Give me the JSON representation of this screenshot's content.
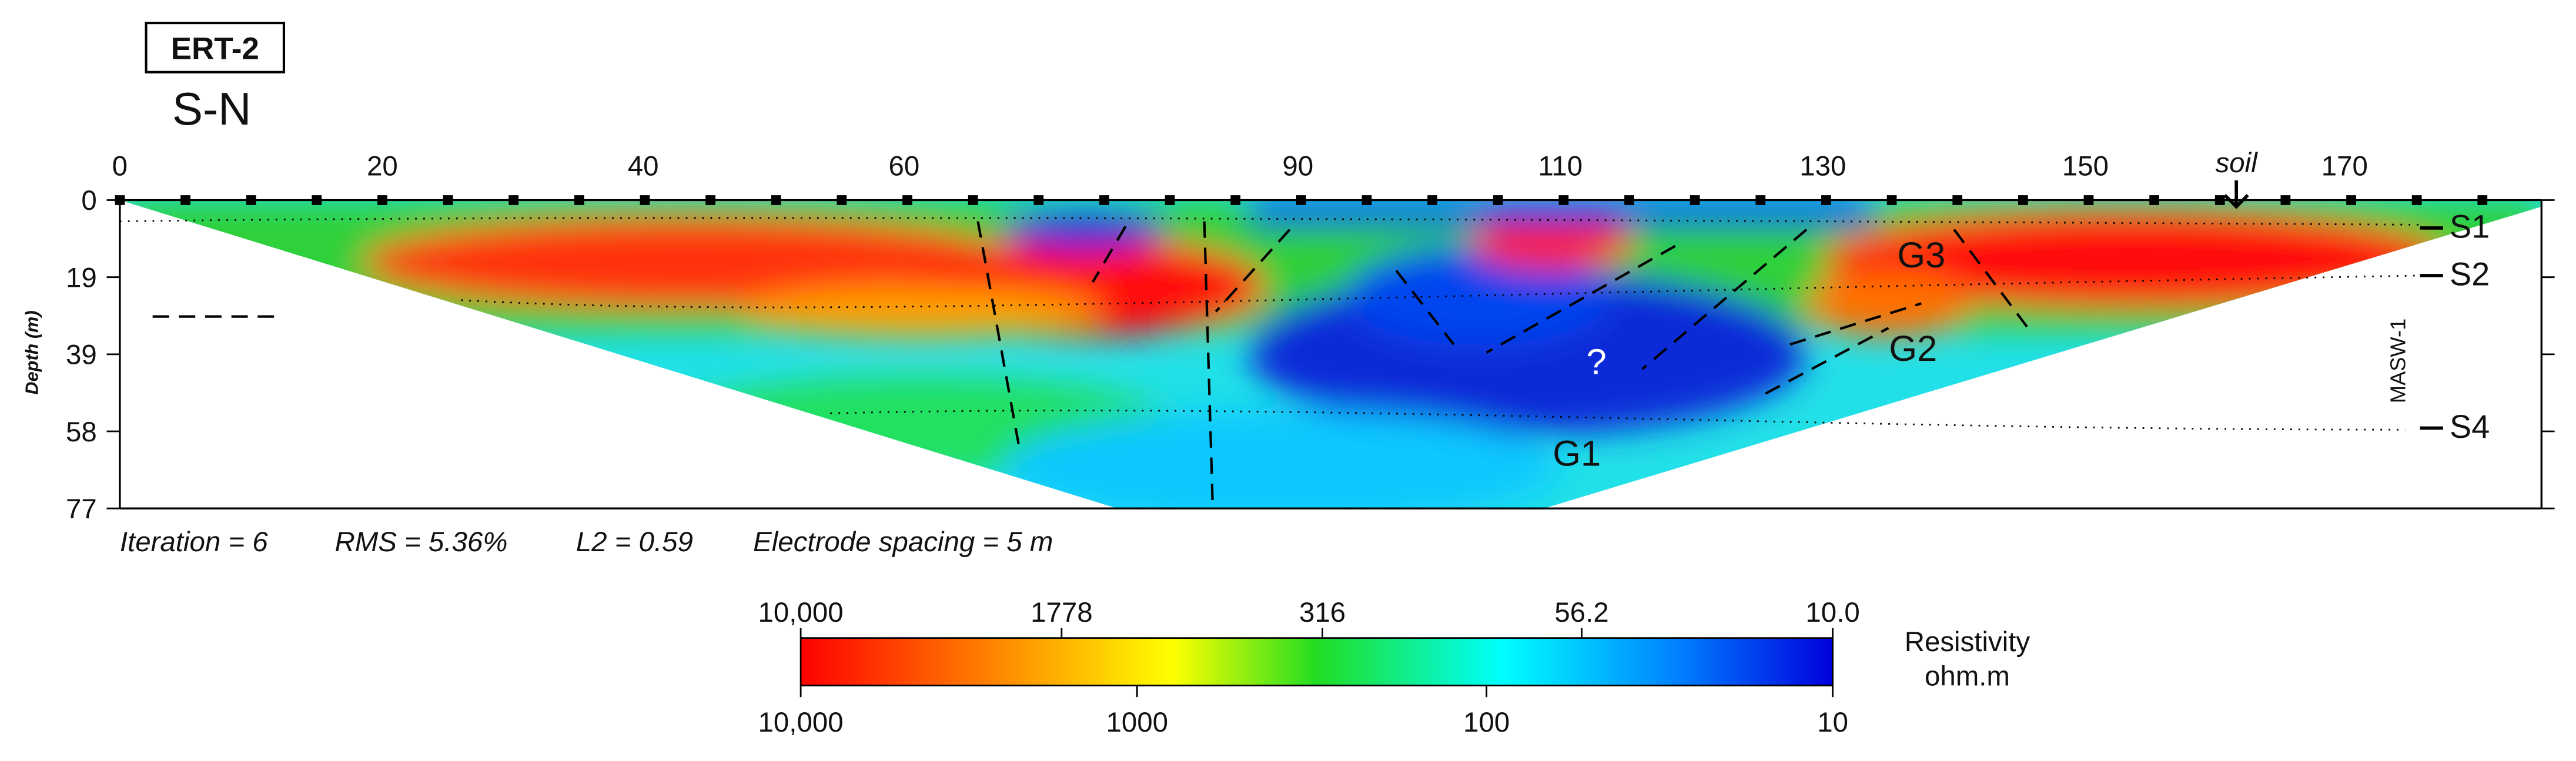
{
  "header": {
    "label": "ERT-2",
    "direction": "S-N"
  },
  "section": {
    "x_ticks": [
      "0",
      "20",
      "40",
      "60",
      "90",
      "110",
      "130",
      "150",
      "170"
    ],
    "depth_ticks": [
      "0",
      "19",
      "39",
      "58",
      "77"
    ],
    "depth_label": "Depth (m)",
    "soil_label": "soil",
    "layer_labels": [
      "S1",
      "S2",
      "S4"
    ],
    "masw": "MASW-1",
    "units": [
      "G3",
      "G2",
      "?",
      "G1"
    ]
  },
  "stats": [
    "Iteration = 6",
    "RMS = 5.36%",
    "L2 = 0.59",
    "Electrode spacing = 5 m"
  ],
  "colorbar": {
    "top_labels": [
      "10,000",
      "1778",
      "316",
      "56.2",
      "10.0"
    ],
    "bottom_labels": [
      "10,000",
      "1000",
      "100",
      "10"
    ],
    "title": "Resistivity",
    "unit": "ohm.m"
  }
}
